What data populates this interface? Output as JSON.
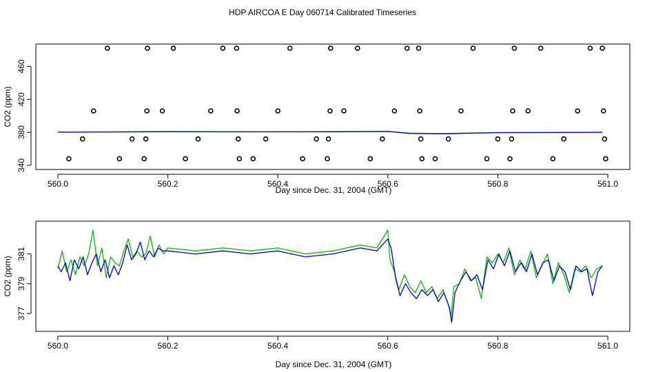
{
  "title": "HDP AIRCOA E  Day 060714  Calibrated Timeseries",
  "chart_data": [
    {
      "type": "line",
      "xlabel": "Day since Dec. 31, 2004 (GMT)",
      "ylabel": "CO2 (ppm)",
      "xlim": [
        559.96,
        561.04
      ],
      "ylim": [
        335,
        487
      ],
      "xticks": [
        560.0,
        560.2,
        560.4,
        560.6,
        560.8,
        561.0
      ],
      "xtick_labels": [
        "560.0",
        "560.2",
        "560.4",
        "560.6",
        "560.8",
        "561.0"
      ],
      "yticks": [
        340,
        380,
        420,
        460
      ],
      "ytick_labels": [
        "340",
        "380",
        "420",
        "460"
      ],
      "grid": false,
      "legend": "none",
      "colors": {
        "green": "#00bb00",
        "blue": "#0000cc",
        "points": "#000000"
      },
      "series": [
        {
          "color": "#00bb00",
          "x": [
            560.0,
            560.1,
            560.2,
            560.3,
            560.4,
            560.5,
            560.6,
            560.64,
            560.7,
            560.8,
            560.9,
            560.99
          ],
          "y": [
            380.4,
            380.6,
            381.0,
            380.8,
            380.7,
            380.9,
            381.2,
            379.0,
            378.6,
            379.8,
            380.0,
            380.2
          ]
        },
        {
          "color": "#0000cc",
          "x": [
            560.0,
            560.1,
            560.2,
            560.3,
            560.4,
            560.5,
            560.6,
            560.64,
            560.7,
            560.8,
            560.9,
            560.99
          ],
          "y": [
            380.2,
            380.4,
            380.8,
            380.6,
            380.6,
            380.7,
            381.0,
            378.7,
            378.3,
            379.6,
            379.8,
            380.0
          ]
        }
      ],
      "points": {
        "symbol": "open-circle",
        "x": [
          560.02,
          560.045,
          560.065,
          560.09,
          560.112,
          560.135,
          560.157,
          560.16,
          560.162,
          560.163,
          560.19,
          560.21,
          560.232,
          560.255,
          560.278,
          560.3,
          560.325,
          560.326,
          560.328,
          560.33,
          560.355,
          560.378,
          560.4,
          560.422,
          560.445,
          560.47,
          560.49,
          560.492,
          560.495,
          560.496,
          560.52,
          560.545,
          560.568,
          560.59,
          560.612,
          560.635,
          560.656,
          560.658,
          560.66,
          560.662,
          560.686,
          560.71,
          560.733,
          560.755,
          560.78,
          560.8,
          560.822,
          560.825,
          560.827,
          560.83,
          560.855,
          560.878,
          560.9,
          560.92,
          560.945,
          560.968,
          560.99,
          560.992,
          560.994,
          560.996
        ],
        "y": [
          348,
          372,
          406,
          482,
          348,
          372,
          348,
          372,
          406,
          482,
          406,
          482,
          348,
          372,
          406,
          482,
          482,
          406,
          372,
          348,
          348,
          372,
          406,
          482,
          348,
          372,
          348,
          372,
          406,
          482,
          406,
          482,
          348,
          372,
          406,
          482,
          482,
          406,
          372,
          348,
          348,
          372,
          406,
          482,
          348,
          372,
          348,
          372,
          406,
          482,
          406,
          482,
          348,
          372,
          406,
          482,
          482,
          406,
          372,
          348
        ]
      }
    },
    {
      "type": "line",
      "xlabel": "Day since Dec. 31, 2004 (GMT)",
      "ylabel": "CO2 (ppm)",
      "xlim": [
        559.96,
        561.04
      ],
      "ylim": [
        375.8,
        383.2
      ],
      "xticks": [
        560.0,
        560.2,
        560.4,
        560.6,
        560.8,
        561.0
      ],
      "xtick_labels": [
        "560.0",
        "560.2",
        "560.4",
        "560.6",
        "560.8",
        "561.0"
      ],
      "yticks": [
        377,
        379,
        381
      ],
      "ytick_labels": [
        "377",
        "379",
        "381"
      ],
      "grid": false,
      "legend": "none",
      "series": [
        {
          "color": "#00bb00",
          "x": [
            560.0,
            560.008,
            560.016,
            560.024,
            560.032,
            560.04,
            560.048,
            560.056,
            560.064,
            560.072,
            560.08,
            560.088,
            560.096,
            560.104,
            560.112,
            560.12,
            560.128,
            560.136,
            560.144,
            560.152,
            560.16,
            560.168,
            560.176,
            560.184,
            560.192,
            560.2,
            560.25,
            560.3,
            560.35,
            560.4,
            560.45,
            560.5,
            560.55,
            560.58,
            560.6,
            560.604,
            560.612,
            560.62,
            560.63,
            560.64,
            560.65,
            560.66,
            560.67,
            560.68,
            560.69,
            560.7,
            560.71,
            560.715,
            560.72,
            560.73,
            560.74,
            560.75,
            560.76,
            560.77,
            560.78,
            560.79,
            560.8,
            560.81,
            560.82,
            560.83,
            560.84,
            560.85,
            560.86,
            560.87,
            560.88,
            560.89,
            560.9,
            560.91,
            560.92,
            560.93,
            560.94,
            560.95,
            560.96,
            560.97,
            560.98,
            560.99
          ],
          "y": [
            380.0,
            381.2,
            379.8,
            380.6,
            379.6,
            380.8,
            380.2,
            381.0,
            382.6,
            380.2,
            381.4,
            379.4,
            380.8,
            380.4,
            380.2,
            381.2,
            382.0,
            380.8,
            381.2,
            380.8,
            381.0,
            382.2,
            380.8,
            381.6,
            381.0,
            381.4,
            381.2,
            381.4,
            381.2,
            381.4,
            381.0,
            381.2,
            381.6,
            381.4,
            382.6,
            380.6,
            379.8,
            378.6,
            379.6,
            378.8,
            378.4,
            379.2,
            378.4,
            378.8,
            378.0,
            378.6,
            377.6,
            376.8,
            378.8,
            379.0,
            380.0,
            379.2,
            379.4,
            378.0,
            380.8,
            380.4,
            381.0,
            380.4,
            381.4,
            379.6,
            380.6,
            380.0,
            381.2,
            379.4,
            380.2,
            381.0,
            379.0,
            380.4,
            379.6,
            378.4,
            380.0,
            379.8,
            380.2,
            379.4,
            380.0,
            380.2
          ]
        },
        {
          "color": "#0000cc",
          "x": [
            560.0,
            560.006,
            560.014,
            560.022,
            560.03,
            560.038,
            560.046,
            560.054,
            560.062,
            560.07,
            560.078,
            560.086,
            560.094,
            560.102,
            560.11,
            560.118,
            560.126,
            560.134,
            560.142,
            560.15,
            560.158,
            560.166,
            560.174,
            560.182,
            560.19,
            560.2,
            560.25,
            560.3,
            560.35,
            560.4,
            560.45,
            560.5,
            560.55,
            560.58,
            560.6,
            560.606,
            560.614,
            560.622,
            560.632,
            560.642,
            560.652,
            560.662,
            560.672,
            560.682,
            560.692,
            560.702,
            560.712,
            560.716,
            560.722,
            560.732,
            560.742,
            560.752,
            560.762,
            560.772,
            560.782,
            560.792,
            560.802,
            560.812,
            560.822,
            560.832,
            560.842,
            560.852,
            560.862,
            560.872,
            560.882,
            560.892,
            560.902,
            560.912,
            560.922,
            560.932,
            560.942,
            560.952,
            560.962,
            560.972,
            560.982,
            560.99
          ],
          "y": [
            380.2,
            379.8,
            380.4,
            379.2,
            380.6,
            380.0,
            380.8,
            379.6,
            380.4,
            381.0,
            379.8,
            380.6,
            379.4,
            380.2,
            379.6,
            380.4,
            381.6,
            380.6,
            381.0,
            381.8,
            380.6,
            381.2,
            380.8,
            381.4,
            381.2,
            381.2,
            381.0,
            381.2,
            381.0,
            381.2,
            380.8,
            381.0,
            381.4,
            381.2,
            382.0,
            381.4,
            379.4,
            378.2,
            379.0,
            378.4,
            378.0,
            378.6,
            378.2,
            378.6,
            377.8,
            378.4,
            377.4,
            376.4,
            378.4,
            379.2,
            379.8,
            379.2,
            379.6,
            378.6,
            380.6,
            380.0,
            381.0,
            380.2,
            381.2,
            379.8,
            380.4,
            379.8,
            381.0,
            379.6,
            380.4,
            380.6,
            379.2,
            380.2,
            379.8,
            378.6,
            380.2,
            379.8,
            380.0,
            378.2,
            379.8,
            380.2
          ]
        }
      ]
    }
  ]
}
